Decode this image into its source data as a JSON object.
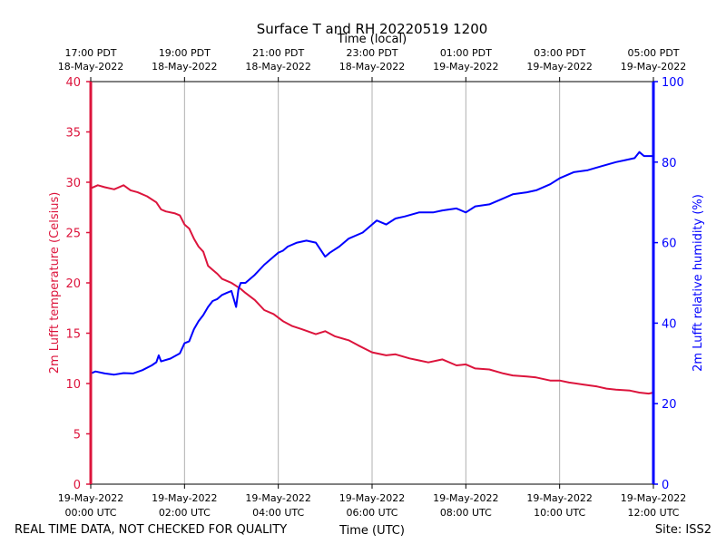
{
  "chart_data": {
    "type": "line",
    "title": "Surface T and RH 20220519 1200",
    "top_axis_title": "Time (local)",
    "xlabel": "Time (UTC)",
    "ylabel_left": "2m Lufft temperature (Celsius)",
    "ylabel_right": "2m Lufft relative humidity (%)",
    "x_unit": "hours since 19-May-2022 00:00 UTC",
    "xlim": [
      0,
      12
    ],
    "ylim_left": [
      0,
      40
    ],
    "ylim_right": [
      0,
      100
    ],
    "left_ticks": [
      0,
      5,
      10,
      15,
      20,
      25,
      30,
      35,
      40
    ],
    "right_ticks": [
      0,
      20,
      40,
      60,
      80,
      100
    ],
    "bottom_ticks": [
      {
        "x": 0,
        "line1": "19-May-2022",
        "line2": "00:00 UTC"
      },
      {
        "x": 2,
        "line1": "19-May-2022",
        "line2": "02:00 UTC"
      },
      {
        "x": 4,
        "line1": "19-May-2022",
        "line2": "04:00 UTC"
      },
      {
        "x": 6,
        "line1": "19-May-2022",
        "line2": "06:00 UTC"
      },
      {
        "x": 8,
        "line1": "19-May-2022",
        "line2": "08:00 UTC"
      },
      {
        "x": 10,
        "line1": "19-May-2022",
        "line2": "10:00 UTC"
      },
      {
        "x": 12,
        "line1": "19-May-2022",
        "line2": "12:00 UTC"
      }
    ],
    "top_ticks": [
      {
        "x": 0,
        "line1": "17:00 PDT",
        "line2": "18-May-2022"
      },
      {
        "x": 2,
        "line1": "19:00 PDT",
        "line2": "18-May-2022"
      },
      {
        "x": 4,
        "line1": "21:00 PDT",
        "line2": "18-May-2022"
      },
      {
        "x": 6,
        "line1": "23:00 PDT",
        "line2": "18-May-2022"
      },
      {
        "x": 8,
        "line1": "01:00 PDT",
        "line2": "19-May-2022"
      },
      {
        "x": 10,
        "line1": "03:00 PDT",
        "line2": "19-May-2022"
      },
      {
        "x": 12,
        "line1": "05:00 PDT",
        "line2": "19-May-2022"
      }
    ],
    "grid_x": true,
    "series": [
      {
        "name": "2m Lufft temperature",
        "axis": "left",
        "color": "#dc143c",
        "x": [
          0.0,
          0.15,
          0.3,
          0.5,
          0.7,
          0.85,
          1.0,
          1.2,
          1.4,
          1.5,
          1.6,
          1.8,
          1.9,
          2.0,
          2.1,
          2.2,
          2.3,
          2.4,
          2.5,
          2.6,
          2.7,
          2.8,
          3.0,
          3.1,
          3.2,
          3.3,
          3.5,
          3.7,
          3.9,
          4.1,
          4.3,
          4.5,
          4.8,
          5.0,
          5.2,
          5.5,
          5.7,
          6.0,
          6.3,
          6.5,
          6.8,
          7.0,
          7.2,
          7.5,
          7.8,
          8.0,
          8.2,
          8.5,
          8.8,
          9.0,
          9.3,
          9.5,
          9.8,
          10.0,
          10.2,
          10.5,
          10.8,
          11.0,
          11.2,
          11.5,
          11.7,
          11.9,
          12.0
        ],
        "values": [
          29.4,
          29.7,
          29.5,
          29.3,
          29.7,
          29.2,
          29.0,
          28.6,
          28.0,
          27.3,
          27.1,
          26.9,
          26.7,
          25.8,
          25.4,
          24.4,
          23.6,
          23.1,
          21.7,
          21.3,
          20.9,
          20.4,
          20.0,
          19.7,
          19.4,
          19.0,
          18.3,
          17.3,
          16.9,
          16.2,
          15.7,
          15.4,
          14.9,
          15.2,
          14.7,
          14.3,
          13.8,
          13.1,
          12.8,
          12.9,
          12.5,
          12.3,
          12.1,
          12.4,
          11.8,
          11.9,
          11.5,
          11.4,
          11.0,
          10.8,
          10.7,
          10.6,
          10.3,
          10.3,
          10.1,
          9.9,
          9.7,
          9.5,
          9.4,
          9.3,
          9.1,
          9.0,
          9.1
        ]
      },
      {
        "name": "2m Lufft relative humidity",
        "axis": "right",
        "color": "#0000ff",
        "x": [
          0.0,
          0.1,
          0.3,
          0.5,
          0.7,
          0.9,
          1.1,
          1.3,
          1.4,
          1.45,
          1.5,
          1.7,
          1.9,
          2.0,
          2.1,
          2.2,
          2.3,
          2.4,
          2.5,
          2.6,
          2.7,
          2.8,
          2.9,
          3.0,
          3.1,
          3.15,
          3.2,
          3.3,
          3.5,
          3.7,
          3.8,
          3.9,
          4.0,
          4.1,
          4.2,
          4.4,
          4.6,
          4.8,
          5.0,
          5.1,
          5.3,
          5.5,
          5.8,
          6.0,
          6.1,
          6.3,
          6.5,
          6.7,
          7.0,
          7.3,
          7.5,
          7.8,
          8.0,
          8.2,
          8.5,
          8.8,
          9.0,
          9.3,
          9.5,
          9.8,
          10.0,
          10.3,
          10.6,
          10.9,
          11.2,
          11.4,
          11.6,
          11.7,
          11.8,
          12.0
        ],
        "values": [
          27.5,
          28.0,
          27.5,
          27.2,
          27.6,
          27.5,
          28.3,
          29.5,
          30.3,
          32.0,
          30.5,
          31.2,
          32.5,
          35.0,
          35.5,
          38.5,
          40.5,
          42.0,
          44.0,
          45.5,
          46.0,
          47.0,
          47.5,
          48.0,
          44.0,
          48.5,
          50.0,
          50.0,
          52.0,
          54.5,
          55.5,
          56.5,
          57.5,
          58.0,
          59.0,
          60.0,
          60.5,
          60.0,
          56.5,
          57.5,
          59.0,
          61.0,
          62.5,
          64.5,
          65.5,
          64.5,
          66.0,
          66.5,
          67.5,
          67.5,
          68.0,
          68.5,
          67.5,
          69.0,
          69.5,
          71.0,
          72.0,
          72.5,
          73.0,
          74.5,
          76.0,
          77.5,
          78.0,
          79.0,
          80.0,
          80.5,
          81.0,
          82.5,
          81.5,
          81.5
        ]
      }
    ]
  },
  "footer": {
    "left_note": "REAL TIME DATA, NOT CHECKED FOR QUALITY",
    "site": "Site: ISS2"
  }
}
